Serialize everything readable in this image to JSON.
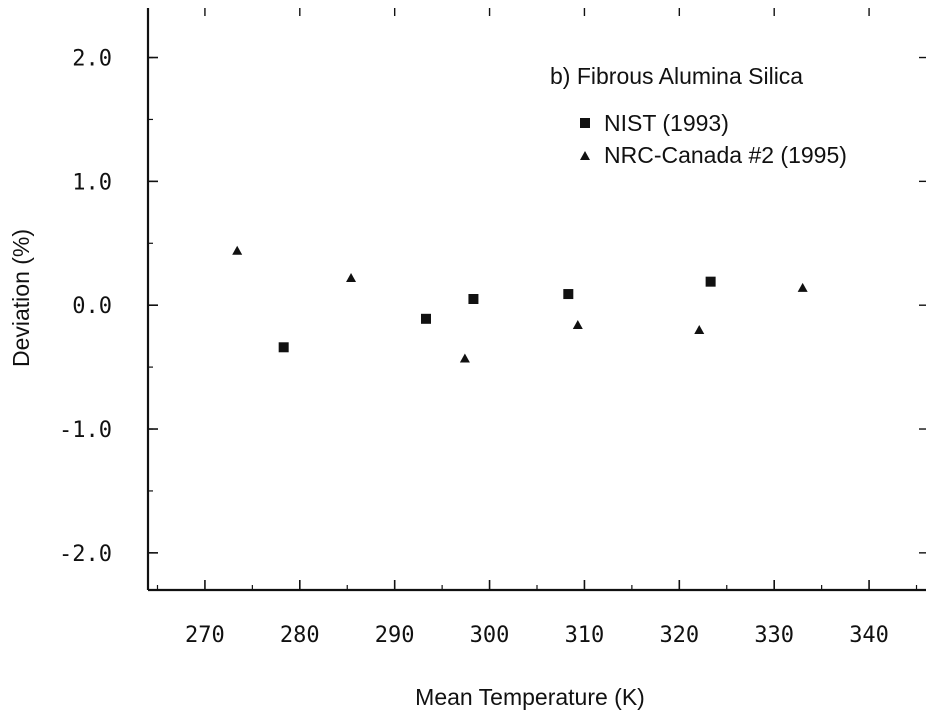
{
  "chart_data": {
    "type": "scatter",
    "title": "",
    "xlabel": "Mean Temperature (K)",
    "ylabel": "Deviation (%)",
    "xlim": [
      264,
      346
    ],
    "ylim": [
      -2.3,
      2.4
    ],
    "x_ticks": [
      270,
      280,
      290,
      300,
      310,
      320,
      330,
      340
    ],
    "y_ticks": [
      2.0,
      1.0,
      0.0,
      -1.0,
      -2.0
    ],
    "x_tick_labels": [
      "270",
      "280",
      "290",
      "300",
      "310",
      "320",
      "330",
      "340"
    ],
    "y_tick_labels": [
      "2.0",
      "1.0",
      "0.0",
      "-1.0",
      "-2.0"
    ],
    "grid": false,
    "annotation": "b) Fibrous Alumina Silica",
    "legend_position": "top-right",
    "series": [
      {
        "name": "NIST (1993)",
        "marker": "square",
        "color": "#111111",
        "points": [
          {
            "x": 278.3,
            "y": -0.34
          },
          {
            "x": 293.3,
            "y": -0.11
          },
          {
            "x": 298.3,
            "y": 0.05
          },
          {
            "x": 308.3,
            "y": 0.09
          },
          {
            "x": 323.3,
            "y": 0.19
          }
        ]
      },
      {
        "name": "NRC-Canada #2 (1995)",
        "marker": "triangle",
        "color": "#111111",
        "points": [
          {
            "x": 273.4,
            "y": 0.44
          },
          {
            "x": 285.4,
            "y": 0.22
          },
          {
            "x": 297.4,
            "y": -0.43
          },
          {
            "x": 309.3,
            "y": -0.16
          },
          {
            "x": 322.1,
            "y": -0.2
          },
          {
            "x": 333.0,
            "y": 0.14
          }
        ]
      }
    ]
  }
}
